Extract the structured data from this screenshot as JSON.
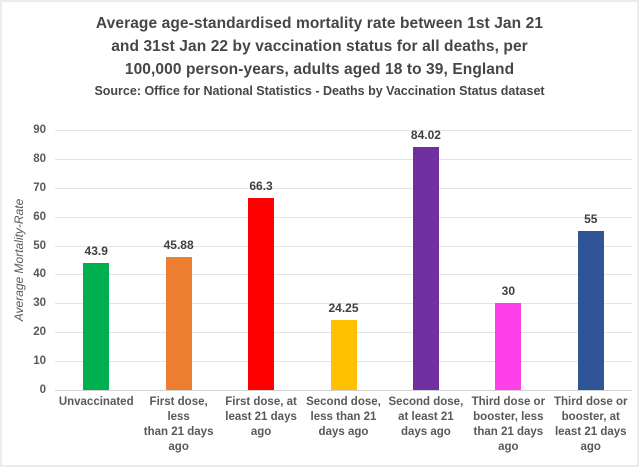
{
  "header": {
    "title_lines": [
      "Average age-standardised mortality rate between 1st Jan 21",
      "and  31st Jan 22 by vaccination status for all deaths, per",
      "100,000 person-years, adults aged 18 to 39, England"
    ],
    "source": "Source: Office for National Statistics - Deaths by Vaccination Status dataset"
  },
  "chart_data": {
    "type": "bar",
    "title": "Average age-standardised mortality rate between 1st Jan 21 and 31st Jan 22 by vaccination status for all deaths, per 100,000 person-years, adults aged 18 to 39, England",
    "subtitle": "Source: Office for National Statistics - Deaths by Vaccination Status dataset",
    "categories": [
      "Unvaccinated",
      "First dose, less\nthan 21 days\nago",
      "First dose, at\nleast 21 days\nago",
      "Second dose,\nless than 21\ndays ago",
      "Second dose,\nat least 21\ndays ago",
      "Third dose or\nbooster, less\nthan 21 days\nago",
      "Third dose or\nbooster, at\nleast 21 days\nago"
    ],
    "values": [
      43.9,
      45.88,
      66.3,
      24.25,
      84.02,
      30,
      55
    ],
    "value_labels": [
      "43.9",
      "45.88",
      "66.3",
      "24.25",
      "84.02",
      "30",
      "55"
    ],
    "bar_colors": [
      "#00b050",
      "#ed7d31",
      "#ff0000",
      "#ffc000",
      "#7030a0",
      "#ff40e8",
      "#2f5597"
    ],
    "xlabel": "",
    "ylabel": "Average Mortality-Rate",
    "ylim": [
      0,
      90
    ],
    "yticks": [
      0,
      10,
      20,
      30,
      40,
      50,
      60,
      70,
      80,
      90
    ],
    "grid": true,
    "legend": "none",
    "colors": {
      "title_text": "#464646",
      "axis_text": "#595959",
      "value_label_text": "#3f3f3f",
      "gridline": "#e4e4e4",
      "baseline": "#d2d2d2",
      "background": "#ffffff",
      "frame_border": "#ececec"
    }
  }
}
